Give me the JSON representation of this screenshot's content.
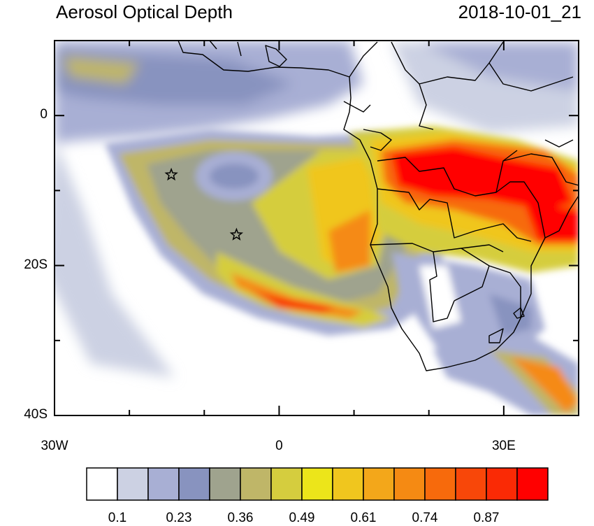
{
  "title": "Aerosol Optical Depth",
  "datetime": "2018-10-01_21",
  "map": {
    "lon_range": [
      -30,
      40
    ],
    "lat_range": [
      -40,
      10
    ],
    "lat_ticks": [
      {
        "lat": 0,
        "label": "0"
      },
      {
        "lat": -20,
        "label": "20S"
      },
      {
        "lat": -40,
        "label": "40S"
      }
    ],
    "lon_ticks": [
      {
        "lon": -30,
        "label": "30W"
      },
      {
        "lon": 0,
        "label": "0"
      },
      {
        "lon": 30,
        "label": "30E"
      }
    ],
    "markers": [
      {
        "name": "star-marker-st-helena",
        "lon": -14.4,
        "lat": -7.9
      },
      {
        "name": "star-marker-ascension",
        "lon": -5.7,
        "lat": -15.9
      }
    ]
  },
  "colorbar": {
    "colors": [
      "#ffffff",
      "#ccd1e3",
      "#a8afd4",
      "#8893bf",
      "#9fa38e",
      "#bfb668",
      "#d5cd3e",
      "#ece51a",
      "#f0c61e",
      "#f3a71a",
      "#f58a13",
      "#f76a0c",
      "#f84709",
      "#fa2a05",
      "#ff0000"
    ],
    "labels": [
      "0.1",
      "0.23",
      "0.36",
      "0.49",
      "0.61",
      "0.74",
      "0.87"
    ]
  }
}
